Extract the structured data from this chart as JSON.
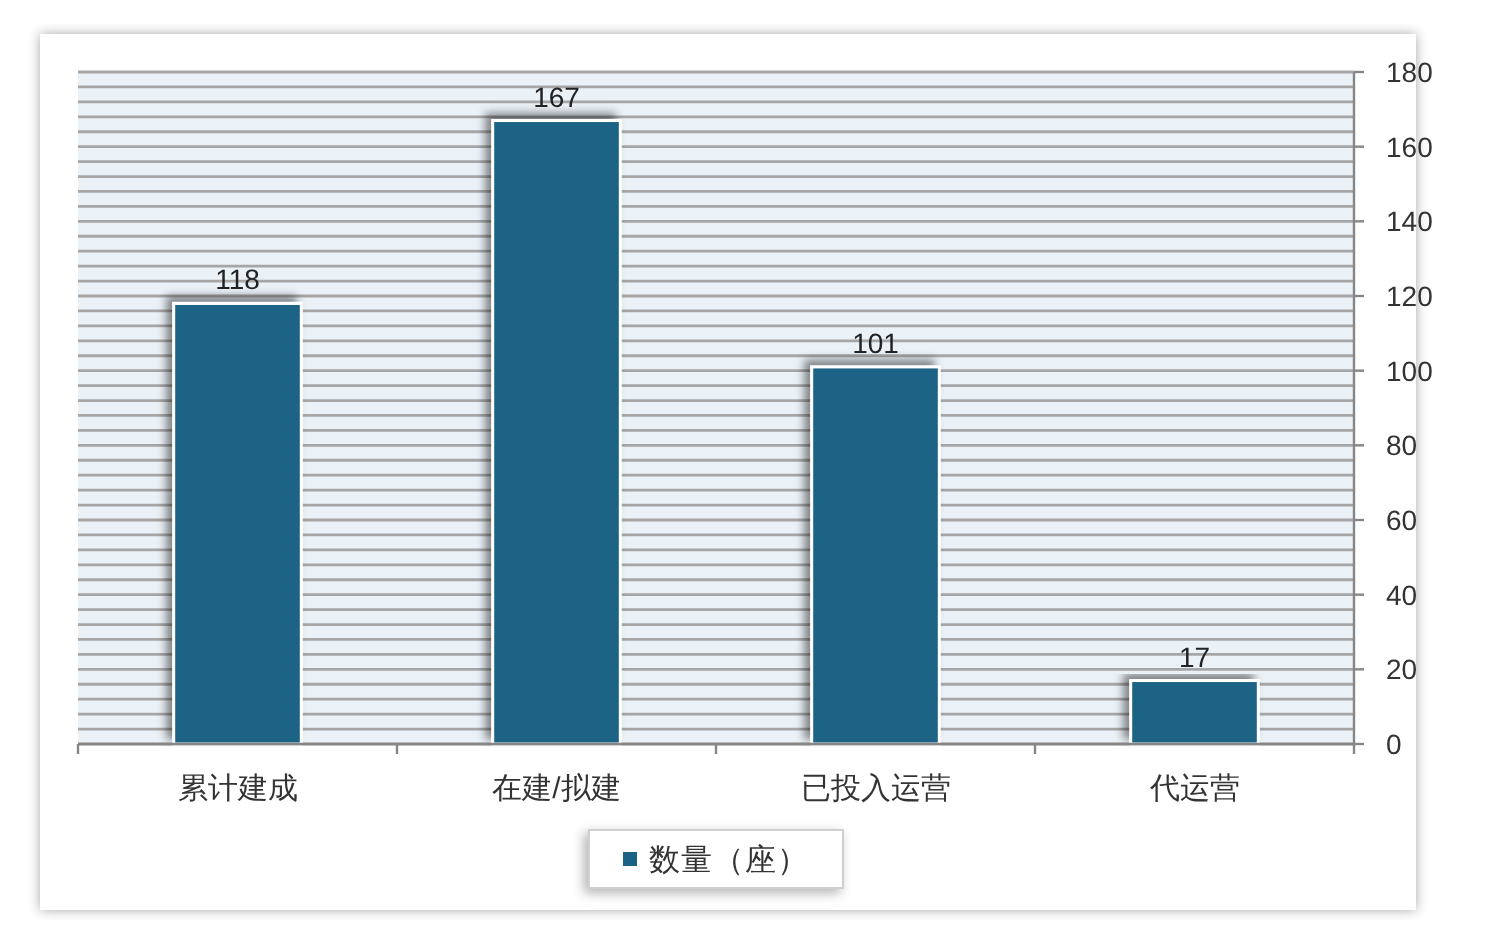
{
  "chart_data": {
    "type": "bar",
    "categories": [
      "累计建成",
      "在建/拟建",
      "已投入运营",
      "代运营"
    ],
    "series": [
      {
        "name": "数量（座）",
        "color": "#1b6386",
        "values": [
          118,
          167,
          101,
          17
        ]
      }
    ],
    "ylim": [
      0,
      180
    ],
    "yticks": [
      0,
      {
        "value": 4,
        "label": null
      },
      {
        "value": 8,
        "label": null
      },
      {
        "value": 12,
        "label": null
      },
      {
        "value": 16,
        "label": null
      },
      20,
      {
        "value": 24,
        "label": null
      },
      {
        "value": 28,
        "label": null
      },
      {
        "value": 32,
        "label": null
      },
      {
        "value": 36,
        "label": null
      },
      40,
      {
        "value": 44,
        "label": null
      },
      {
        "value": 48,
        "label": null
      },
      {
        "value": 52,
        "label": null
      },
      {
        "value": 56,
        "label": null
      },
      60,
      {
        "value": 64,
        "label": null
      },
      {
        "value": 68,
        "label": null
      },
      {
        "value": 72,
        "label": null
      },
      {
        "value": 76,
        "label": null
      },
      80,
      {
        "value": 84,
        "label": null
      },
      {
        "value": 88,
        "label": null
      },
      {
        "value": 92,
        "label": null
      },
      {
        "value": 96,
        "label": null
      },
      100,
      {
        "value": 104,
        "label": null
      },
      {
        "value": 108,
        "label": null
      },
      {
        "value": 112,
        "label": null
      },
      {
        "value": 116,
        "label": null
      },
      120,
      {
        "value": 124,
        "label": null
      },
      {
        "value": 128,
        "label": null
      },
      {
        "value": 132,
        "label": null
      },
      {
        "value": 136,
        "label": null
      },
      140,
      {
        "value": 144,
        "label": null
      },
      {
        "value": 148,
        "label": null
      },
      {
        "value": 152,
        "label": null
      },
      {
        "value": 156,
        "label": null
      },
      160,
      {
        "value": 164,
        "label": null
      },
      {
        "value": 168,
        "label": null
      },
      {
        "value": 172,
        "label": null
      },
      {
        "value": 176,
        "label": null
      },
      180
    ],
    "grid": "y",
    "data_labels": true,
    "legend": "bottom"
  }
}
